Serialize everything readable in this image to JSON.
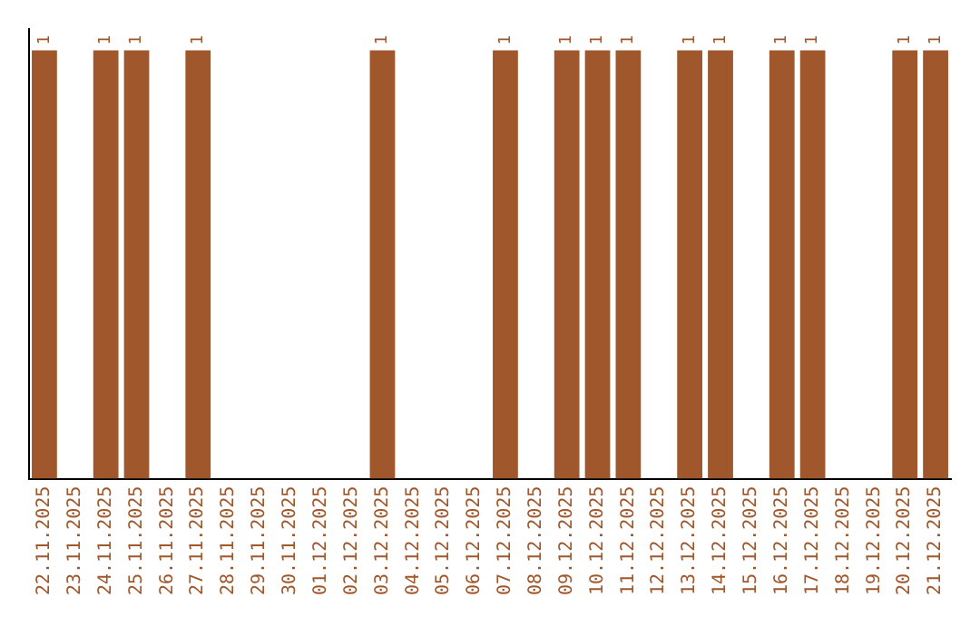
{
  "chart_data": {
    "type": "bar",
    "categories": [
      "22.11.2025",
      "23.11.2025",
      "24.11.2025",
      "25.11.2025",
      "26.11.2025",
      "27.11.2025",
      "28.11.2025",
      "29.11.2025",
      "30.11.2025",
      "01.12.2025",
      "02.12.2025",
      "03.12.2025",
      "04.12.2025",
      "05.12.2025",
      "06.12.2025",
      "07.12.2025",
      "08.12.2025",
      "09.12.2025",
      "10.12.2025",
      "11.12.2025",
      "12.12.2025",
      "13.12.2025",
      "14.12.2025",
      "15.12.2025",
      "16.12.2025",
      "17.12.2025",
      "18.12.2025",
      "19.12.2025",
      "20.12.2025",
      "21.12.2025"
    ],
    "values": [
      1,
      null,
      1,
      1,
      null,
      1,
      null,
      null,
      null,
      null,
      null,
      1,
      null,
      null,
      null,
      1,
      null,
      1,
      1,
      1,
      null,
      1,
      1,
      null,
      1,
      1,
      null,
      null,
      1,
      1
    ],
    "color": "#a0572b",
    "data_labels": true,
    "grid": false,
    "legend": false
  }
}
